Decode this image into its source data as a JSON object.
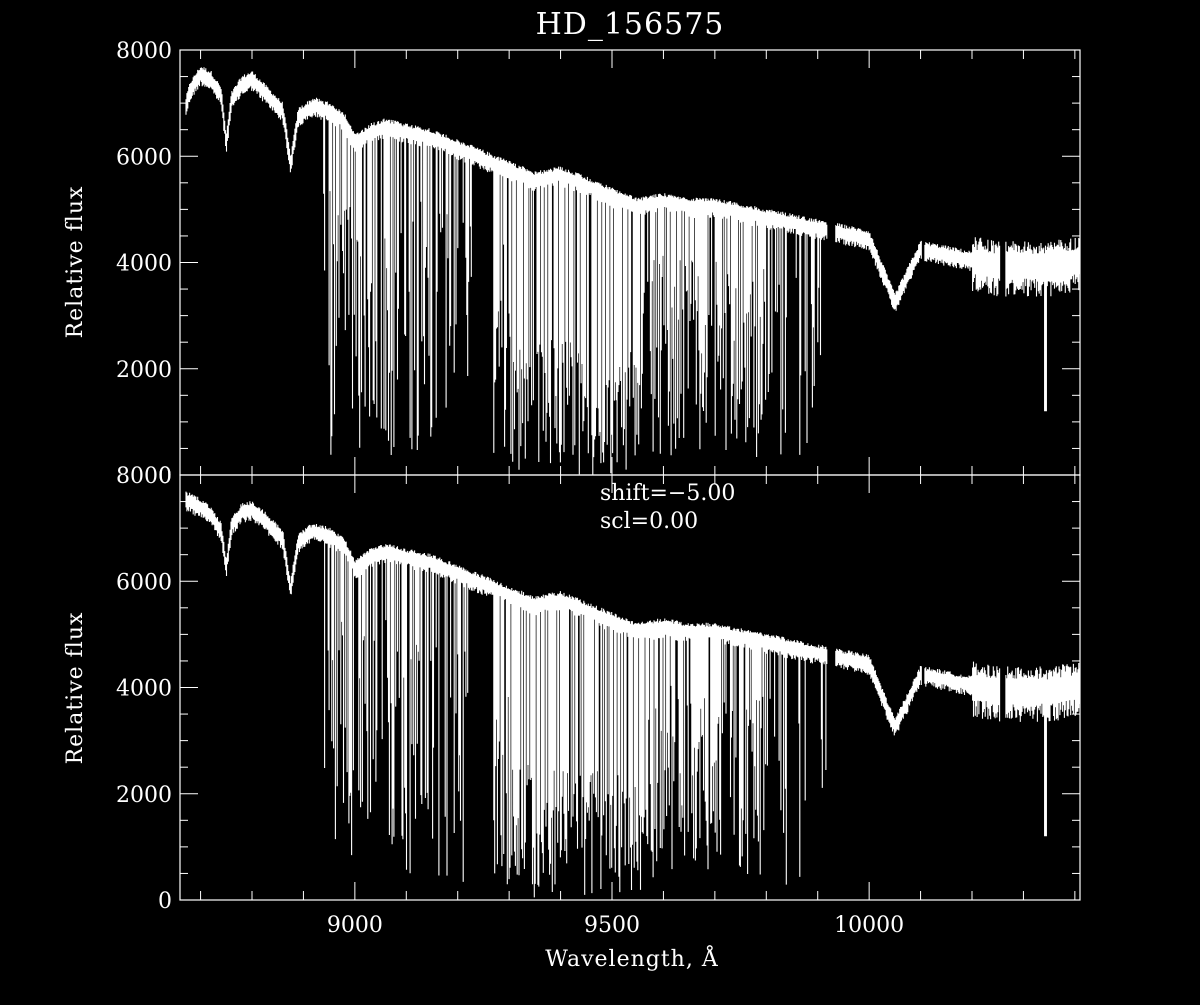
{
  "chart_data": [
    {
      "type": "line",
      "panel": "top",
      "title": "HD_156575",
      "ylabel": "Relative flux",
      "xlabel": "",
      "xlim": [
        8660,
        10410
      ],
      "ylim": [
        0,
        8000
      ],
      "yticks": [
        "0",
        "2000",
        "4000",
        "6000",
        "8000"
      ],
      "xticks": [],
      "annotations": [],
      "series": [
        {
          "color": "#ffffff",
          "x": [
            8660,
            8680,
            8700,
            8720,
            8740,
            8750,
            8760,
            8780,
            8800,
            8820,
            8840,
            8860,
            8875,
            8890,
            8920,
            8950,
            8980,
            9000,
            9030,
            9060,
            9100,
            9150,
            9200,
            9250,
            9300,
            9350,
            9400,
            9450,
            9500,
            9550,
            9600,
            9650,
            9700,
            9750,
            9800,
            9850,
            9900,
            9950,
            10000,
            10050,
            10100,
            10150,
            10200,
            10250,
            10300,
            10350,
            10410
          ],
          "y": [
            6600,
            7300,
            7600,
            7500,
            7200,
            6300,
            7100,
            7400,
            7500,
            7300,
            7100,
            6900,
            5900,
            6800,
            7000,
            6900,
            6700,
            6300,
            6500,
            6600,
            6500,
            6400,
            6200,
            6000,
            5800,
            5600,
            5700,
            5500,
            5300,
            5100,
            5200,
            5100,
            5100,
            5000,
            4900,
            4800,
            4700,
            4600,
            4500,
            3300,
            4300,
            4200,
            4100,
            4000,
            4000,
            4000,
            4100
          ]
        }
      ]
    },
    {
      "type": "line",
      "panel": "bottom",
      "title": "",
      "ylabel": "Relative flux",
      "xlabel": "Wavelength, Å",
      "xlim": [
        8660,
        10410
      ],
      "ylim": [
        0,
        8000
      ],
      "yticks": [
        "0",
        "2000",
        "4000",
        "6000",
        "8000"
      ],
      "xticks": [
        "9000",
        "9500",
        "10000"
      ],
      "annotations": [
        "shift=−5.00",
        "scl=0.00"
      ],
      "series": [
        {
          "color": "#ffffff",
          "x": [
            8660,
            8680,
            8700,
            8720,
            8740,
            8750,
            8760,
            8780,
            8800,
            8820,
            8840,
            8860,
            8875,
            8890,
            8920,
            8950,
            8980,
            9000,
            9030,
            9060,
            9100,
            9150,
            9200,
            9250,
            9300,
            9350,
            9400,
            9450,
            9500,
            9550,
            9600,
            9650,
            9700,
            9750,
            9800,
            9850,
            9900,
            9950,
            10000,
            10050,
            10100,
            10150,
            10200,
            10250,
            10300,
            10350,
            10410
          ],
          "y": [
            7600,
            7550,
            7450,
            7300,
            7000,
            6300,
            7100,
            7350,
            7400,
            7250,
            7050,
            6850,
            5900,
            6800,
            7000,
            6900,
            6700,
            6300,
            6500,
            6600,
            6500,
            6400,
            6200,
            6000,
            5800,
            5600,
            5700,
            5500,
            5300,
            5100,
            5200,
            5100,
            5100,
            5000,
            4900,
            4800,
            4700,
            4600,
            4500,
            3300,
            4300,
            4200,
            4100,
            4000,
            4000,
            4000,
            4100
          ]
        }
      ]
    }
  ]
}
